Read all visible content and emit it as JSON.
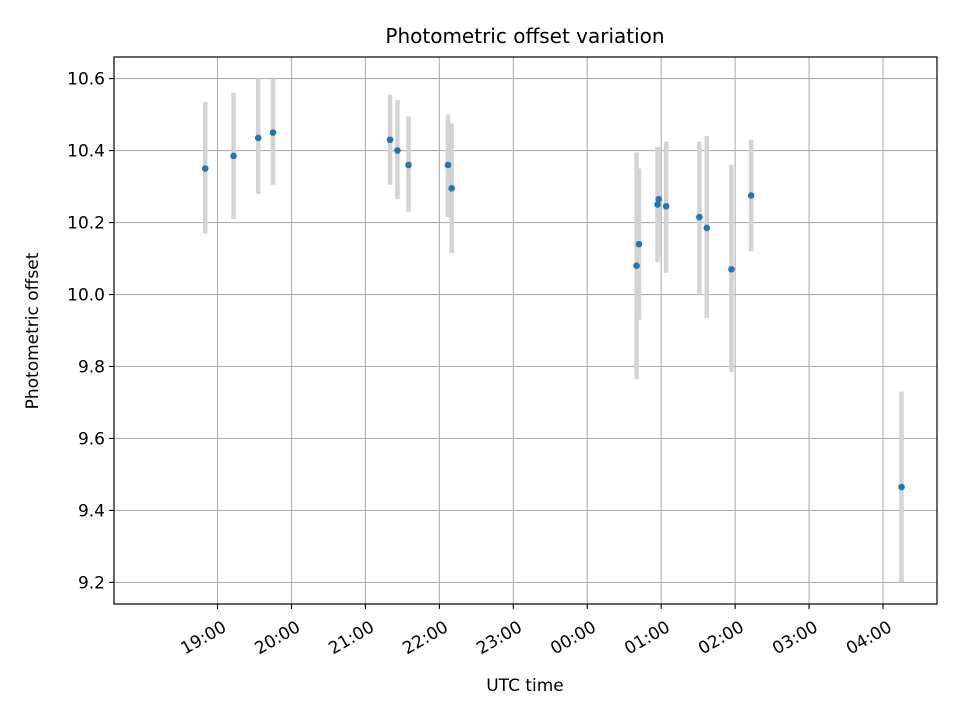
{
  "chart_data": {
    "type": "scatter",
    "title": "Photometric offset variation",
    "xlabel": "UTC time",
    "ylabel": "Photometric offset",
    "x_ticks": [
      "19:00",
      "20:00",
      "21:00",
      "22:00",
      "23:00",
      "00:00",
      "01:00",
      "02:00",
      "03:00",
      "04:00"
    ],
    "y_ticks": [
      "9.2",
      "9.4",
      "9.6",
      "9.8",
      "10.0",
      "10.2",
      "10.4",
      "10.6"
    ],
    "xlim_hours": [
      17.6,
      28.73
    ],
    "ylim": [
      9.14,
      10.66
    ],
    "grid": true,
    "marker_color": "#1f77b4",
    "errorbar_color": "#d3d3d3",
    "points": [
      {
        "time": "18:50",
        "y": 10.35,
        "ylow": 10.17,
        "yhigh": 10.535
      },
      {
        "time": "19:13",
        "y": 10.385,
        "ylow": 10.21,
        "yhigh": 10.56
      },
      {
        "time": "19:33",
        "y": 10.435,
        "ylow": 10.28,
        "yhigh": 10.6
      },
      {
        "time": "19:45",
        "y": 10.45,
        "ylow": 10.305,
        "yhigh": 10.6
      },
      {
        "time": "21:20",
        "y": 10.43,
        "ylow": 10.305,
        "yhigh": 10.555
      },
      {
        "time": "21:26",
        "y": 10.4,
        "ylow": 10.265,
        "yhigh": 10.54
      },
      {
        "time": "21:35",
        "y": 10.36,
        "ylow": 10.23,
        "yhigh": 10.495
      },
      {
        "time": "22:07",
        "y": 10.36,
        "ylow": 10.215,
        "yhigh": 10.5
      },
      {
        "time": "22:10",
        "y": 10.295,
        "ylow": 10.115,
        "yhigh": 10.475
      },
      {
        "time": "00:40",
        "y": 10.08,
        "ylow": 9.765,
        "yhigh": 10.395
      },
      {
        "time": "00:42",
        "y": 10.14,
        "ylow": 9.93,
        "yhigh": 10.35
      },
      {
        "time": "00:57",
        "y": 10.25,
        "ylow": 10.09,
        "yhigh": 10.41
      },
      {
        "time": "00:58",
        "y": 10.265,
        "ylow": 10.105,
        "yhigh": 10.41
      },
      {
        "time": "01:04",
        "y": 10.245,
        "ylow": 10.06,
        "yhigh": 10.425
      },
      {
        "time": "01:31",
        "y": 10.215,
        "ylow": 10.0,
        "yhigh": 10.425
      },
      {
        "time": "01:37",
        "y": 10.185,
        "ylow": 9.935,
        "yhigh": 10.44
      },
      {
        "time": "01:57",
        "y": 10.07,
        "ylow": 9.785,
        "yhigh": 10.36
      },
      {
        "time": "02:13",
        "y": 10.275,
        "ylow": 10.12,
        "yhigh": 10.43
      },
      {
        "time": "04:15",
        "y": 9.465,
        "ylow": 9.2,
        "yhigh": 9.73
      }
    ]
  }
}
